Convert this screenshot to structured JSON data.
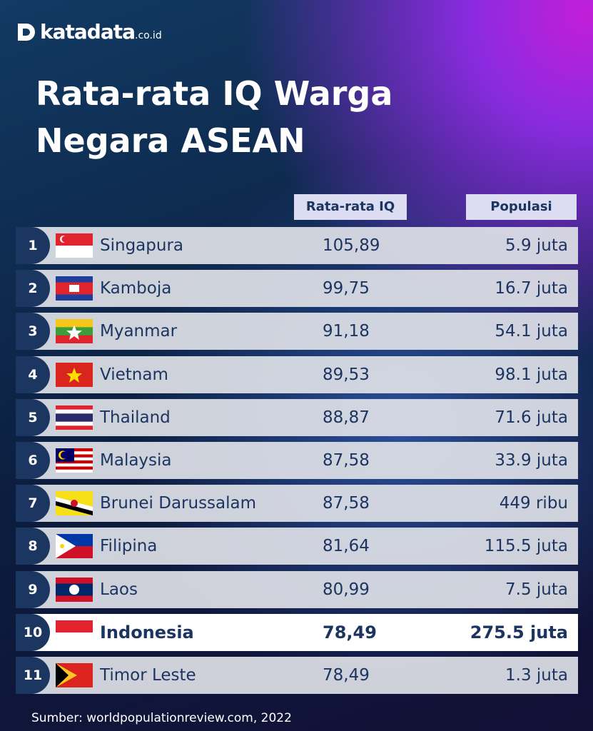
{
  "header": {
    "logo": "katadata",
    "logo_suffix": ".co.id",
    "title_lines": [
      "Rata-rata IQ Warga",
      "Negara ASEAN"
    ]
  },
  "table": {
    "columns": [
      "Rata-rata IQ",
      "Populasi"
    ],
    "rows": [
      [
        "1",
        "Singapura",
        "105,89",
        "5.9 juta"
      ],
      [
        "2",
        "Kamboja",
        "99,75",
        "16.7 juta"
      ],
      [
        "3",
        "Myanmar",
        "91,18",
        "54.1 juta"
      ],
      [
        "4",
        "Vietnam",
        "89,53",
        "98.1 juta"
      ],
      [
        "5",
        "Thailand",
        "88,87",
        "71.6 juta"
      ],
      [
        "6",
        "Malaysia",
        "87,58",
        "33.9 juta"
      ],
      [
        "7",
        "Brunei Darussalam",
        "87,58",
        "449 ribu"
      ],
      [
        "8",
        "Filipina",
        "81,64",
        "115.5 juta"
      ],
      [
        "9",
        "Laos",
        "80,99",
        "7.5 juta"
      ],
      [
        "10",
        "Indonesia",
        "78,49",
        "275.5 juta"
      ],
      [
        "11",
        "Timor Leste",
        "78,49",
        "1.3 juta"
      ]
    ]
  },
  "footer": {
    "source": "Sumber: worldpopulationreview.com, 2022"
  }
}
